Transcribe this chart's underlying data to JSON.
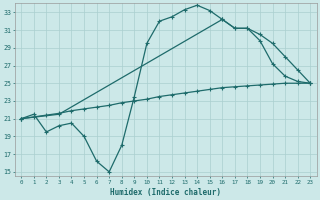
{
  "xlabel": "Humidex (Indice chaleur)",
  "bg_color": "#cce8e8",
  "grid_color": "#aacfcf",
  "line_color": "#1e6b6b",
  "xlim": [
    -0.5,
    23.5
  ],
  "ylim": [
    14.5,
    34
  ],
  "yticks": [
    15,
    17,
    19,
    21,
    23,
    25,
    27,
    29,
    31,
    33
  ],
  "xticks": [
    0,
    1,
    2,
    3,
    4,
    5,
    6,
    7,
    8,
    9,
    10,
    11,
    12,
    13,
    14,
    15,
    16,
    17,
    18,
    19,
    20,
    21,
    22,
    23
  ],
  "line1_x": [
    0,
    1,
    2,
    3,
    4,
    5,
    6,
    7,
    8,
    9,
    10,
    11,
    12,
    13,
    14,
    15,
    16,
    17,
    18,
    19,
    20,
    21,
    22,
    23
  ],
  "line1_y": [
    21.0,
    21.5,
    19.5,
    20.2,
    20.5,
    19.0,
    16.2,
    15.0,
    18.0,
    23.5,
    29.5,
    32.0,
    32.5,
    33.3,
    33.8,
    33.2,
    32.2,
    31.2,
    31.2,
    29.8,
    27.2,
    25.8,
    25.2,
    25.0
  ],
  "line2_x": [
    0,
    3,
    16,
    17,
    18,
    19,
    20,
    21,
    22,
    23
  ],
  "line2_y": [
    21.0,
    21.5,
    32.2,
    31.2,
    31.2,
    30.5,
    29.5,
    28.0,
    26.5,
    25.0
  ],
  "line3_x": [
    0,
    1,
    2,
    3,
    4,
    5,
    6,
    7,
    8,
    9,
    10,
    11,
    12,
    13,
    14,
    15,
    16,
    17,
    18,
    19,
    20,
    21,
    22,
    23
  ],
  "line3_y": [
    21.0,
    21.2,
    21.4,
    21.6,
    21.9,
    22.1,
    22.3,
    22.5,
    22.8,
    23.0,
    23.2,
    23.5,
    23.7,
    23.9,
    24.1,
    24.3,
    24.5,
    24.6,
    24.7,
    24.8,
    24.9,
    25.0,
    25.0,
    25.0
  ]
}
